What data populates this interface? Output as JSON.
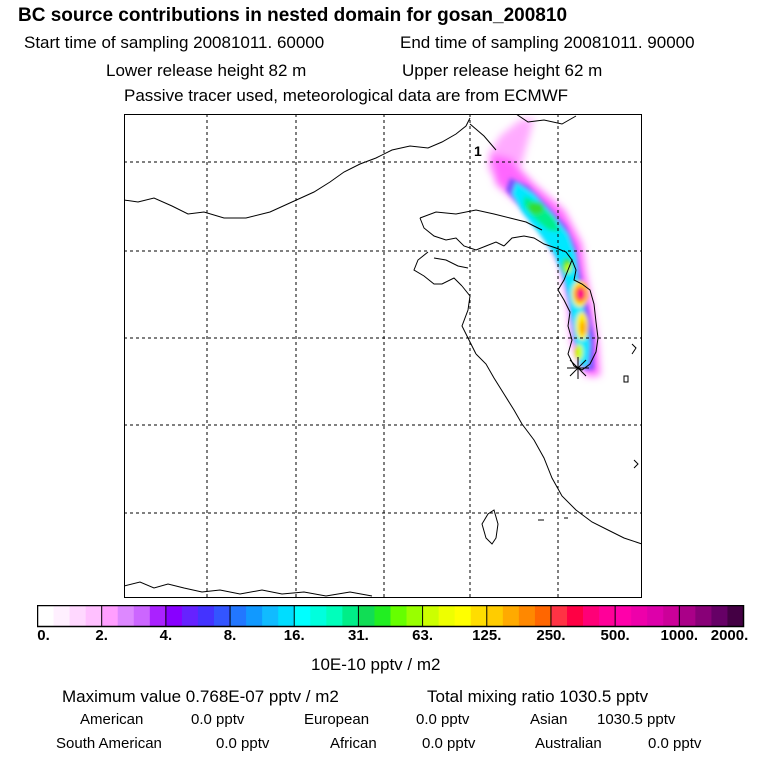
{
  "header": {
    "title": "BC  source contributions in nested domain for gosan_200810",
    "start_time": "Start time of sampling 20081011. 60000",
    "end_time": "End time of sampling 20081011. 90000",
    "lower_release": "Lower release height   82 m",
    "upper_release": "Upper release height   62 m",
    "tracer_note": "Passive tracer used, meteorological data are from ECMWF"
  },
  "map": {
    "plume_label": "1",
    "colors": {
      "magenta": "#ff00ff",
      "cyan": "#00ffff",
      "green": "#33dd33",
      "yellow": "#ffee00",
      "orange": "#ffaa00",
      "red": "#ff1a4a",
      "pink": "#ff0099"
    }
  },
  "colorbar": {
    "labels": [
      "0.",
      "2.",
      "4.",
      "8.",
      "16.",
      "31.",
      "63.",
      "125.",
      "250.",
      "500.",
      "1000.",
      "2000."
    ],
    "colors": [
      "#ffffff",
      "#fff0ff",
      "#ffd8ff",
      "#ffc0ff",
      "#ff9fff",
      "#dd88ff",
      "#cc66ff",
      "#aa22ff",
      "#8800ff",
      "#6622ff",
      "#4433ff",
      "#3355ff",
      "#2277ff",
      "#1199ff",
      "#11bbff",
      "#00ddff",
      "#00ffff",
      "#00ffdd",
      "#00ffbb",
      "#00ee88",
      "#11dd55",
      "#22ee22",
      "#66ff00",
      "#99ff00",
      "#ccff00",
      "#eeff00",
      "#ffff00",
      "#ffdd00",
      "#ffcc00",
      "#ffaa00",
      "#ff8800",
      "#ff6600",
      "#ff3344",
      "#ff0044",
      "#ff0077",
      "#ff0099",
      "#ff00aa",
      "#ee00aa",
      "#dd00aa",
      "#cc0099",
      "#aa0088",
      "#880077",
      "#660066",
      "#440044"
    ],
    "unit_label": "10E-10 pptv / m2"
  },
  "footer": {
    "maximum_value": "Maximum value  0.768E-07 pptv / m2",
    "total_mixing": "Total mixing ratio     1030.5 pptv",
    "american_label": "American",
    "american_value": "0.0 pptv",
    "european_label": "European",
    "european_value": "0.0 pptv",
    "asian_label": "Asian",
    "asian_value": "1030.5 pptv",
    "south_american_label": "South American",
    "south_american_value": "0.0 pptv",
    "african_label": "African",
    "african_value": "0.0 pptv",
    "australian_label": "Australian",
    "australian_value": "0.0 pptv"
  }
}
